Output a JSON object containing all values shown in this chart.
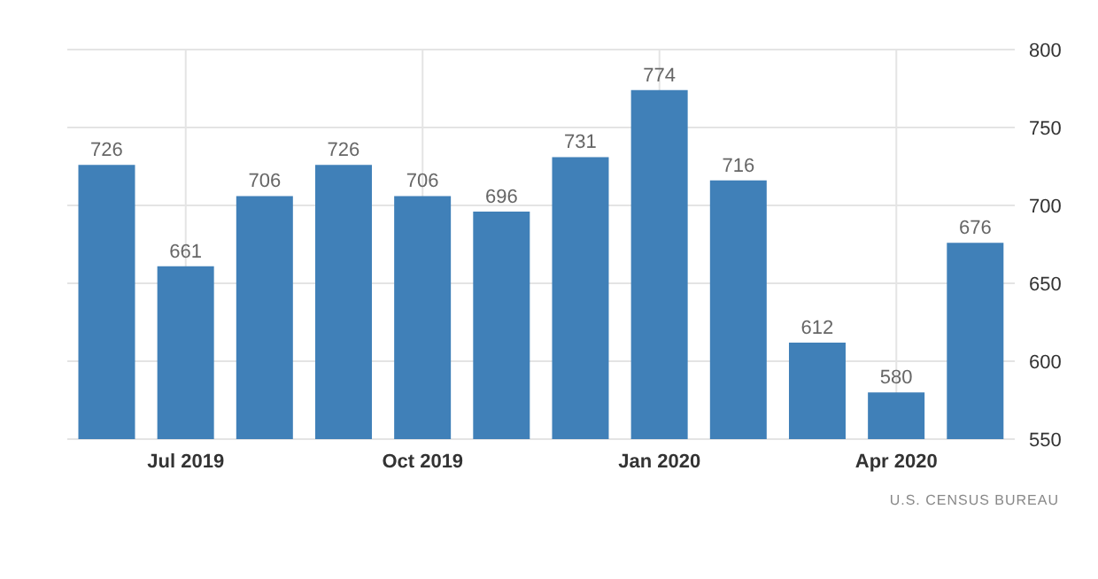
{
  "chart_data": {
    "type": "bar",
    "categories": [
      null,
      "Jul 2019",
      null,
      null,
      "Oct 2019",
      null,
      null,
      "Jan 2020",
      null,
      null,
      "Apr 2020",
      null
    ],
    "values": [
      726,
      661,
      706,
      726,
      706,
      696,
      731,
      774,
      716,
      612,
      580,
      676
    ],
    "color": "#4080b8",
    "ylim": [
      550,
      800
    ],
    "yticks": [
      550,
      600,
      650,
      700,
      750,
      800
    ],
    "grid": true,
    "data_labels": true,
    "annotations": [
      "U.S. CENSUS BUREAU"
    ]
  }
}
